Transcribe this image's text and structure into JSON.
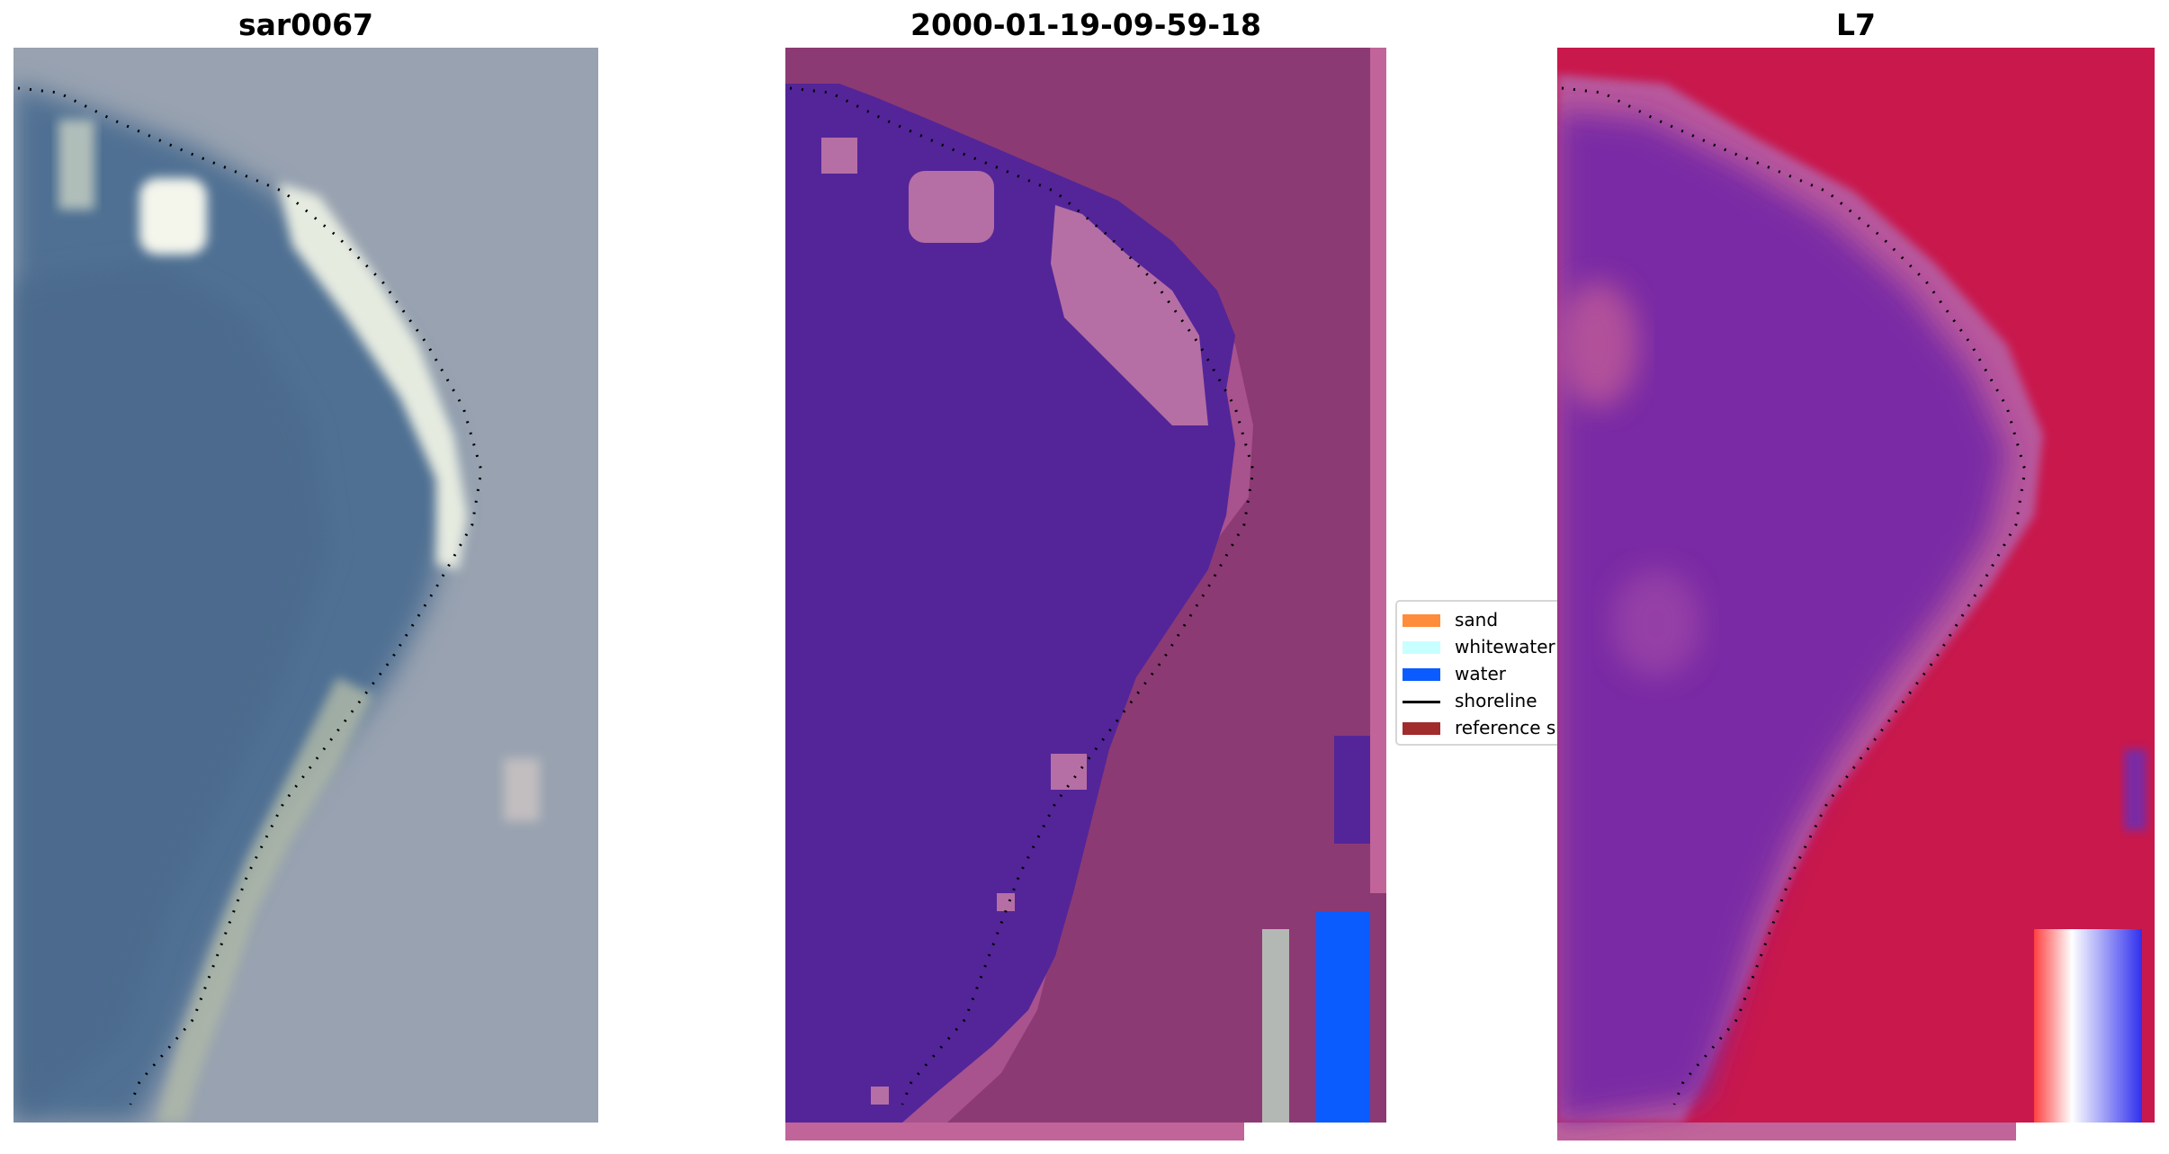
{
  "panels": [
    {
      "title": "sar0067"
    },
    {
      "title": "2000-01-19-09-59-18"
    },
    {
      "title": "L7"
    }
  ],
  "legend": {
    "items": [
      {
        "label": "sand",
        "color": "#ff8c3a",
        "kind": "patch"
      },
      {
        "label": "whitewater",
        "color": "#c8ffff",
        "kind": "patch"
      },
      {
        "label": "water",
        "color": "#0a5cff",
        "kind": "patch"
      },
      {
        "label": "shoreline",
        "color": "#000000",
        "kind": "line"
      },
      {
        "label": "reference s",
        "color": "#a02c2c",
        "kind": "patch"
      }
    ]
  },
  "colors": {
    "rgb_water": "#4f6f93",
    "rgb_land": "#98a2b0",
    "rgb_white": "#f2f5ea",
    "class_water": "#532599",
    "class_land": "#8c3a74",
    "class_light": "#b56fa4",
    "class_border": "#c0649a",
    "ndwi_water": "#7a2aa4",
    "ndwi_land": "#c8184c",
    "ndwi_edge": "#b8589c"
  }
}
